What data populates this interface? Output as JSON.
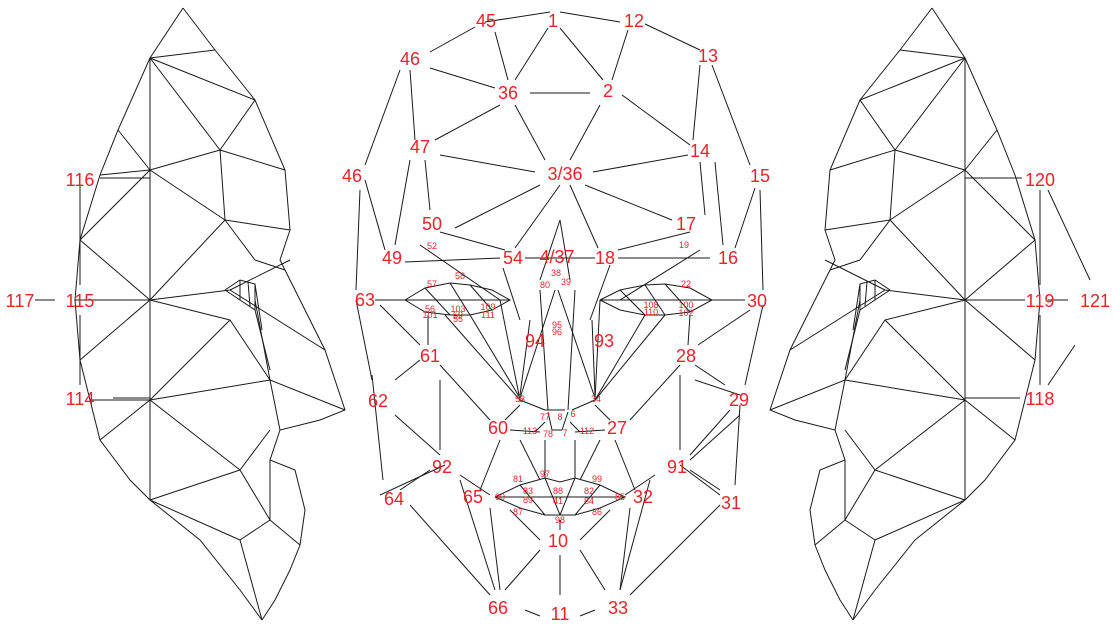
{
  "colors": {
    "mesh": "#1a1a1a",
    "label": "#e8242b",
    "background": "#ffffff"
  },
  "left_profile": {
    "labels": [
      "116",
      "117",
      "115",
      "114"
    ]
  },
  "frontal": {
    "labels": [
      "45",
      "1",
      "12",
      "46",
      "13",
      "36",
      "2",
      "47",
      "14",
      "46",
      "3/36",
      "15",
      "50",
      "17",
      "49",
      "54",
      "4/37",
      "18",
      "16",
      "63",
      "30",
      "94",
      "93",
      "61",
      "28",
      "62",
      "29",
      "60",
      "27",
      "92",
      "91",
      "65",
      "32",
      "64",
      "31",
      "10",
      "66",
      "11",
      "33"
    ],
    "small_labels": [
      "52",
      "19",
      "57",
      "58",
      "38",
      "39",
      "56",
      "101",
      "103",
      "59",
      "55",
      "109",
      "111",
      "108",
      "110",
      "22",
      "100",
      "102",
      "95",
      "96",
      "53",
      "77",
      "78",
      "113",
      "112",
      "81",
      "97",
      "99",
      "90",
      "83",
      "88",
      "82",
      "85",
      "89",
      "41",
      "84",
      "87",
      "86",
      "98",
      "80",
      "34",
      "6",
      "8",
      "7",
      "5"
    ]
  },
  "right_profile": {
    "labels": [
      "120",
      "119",
      "121",
      "118"
    ]
  }
}
